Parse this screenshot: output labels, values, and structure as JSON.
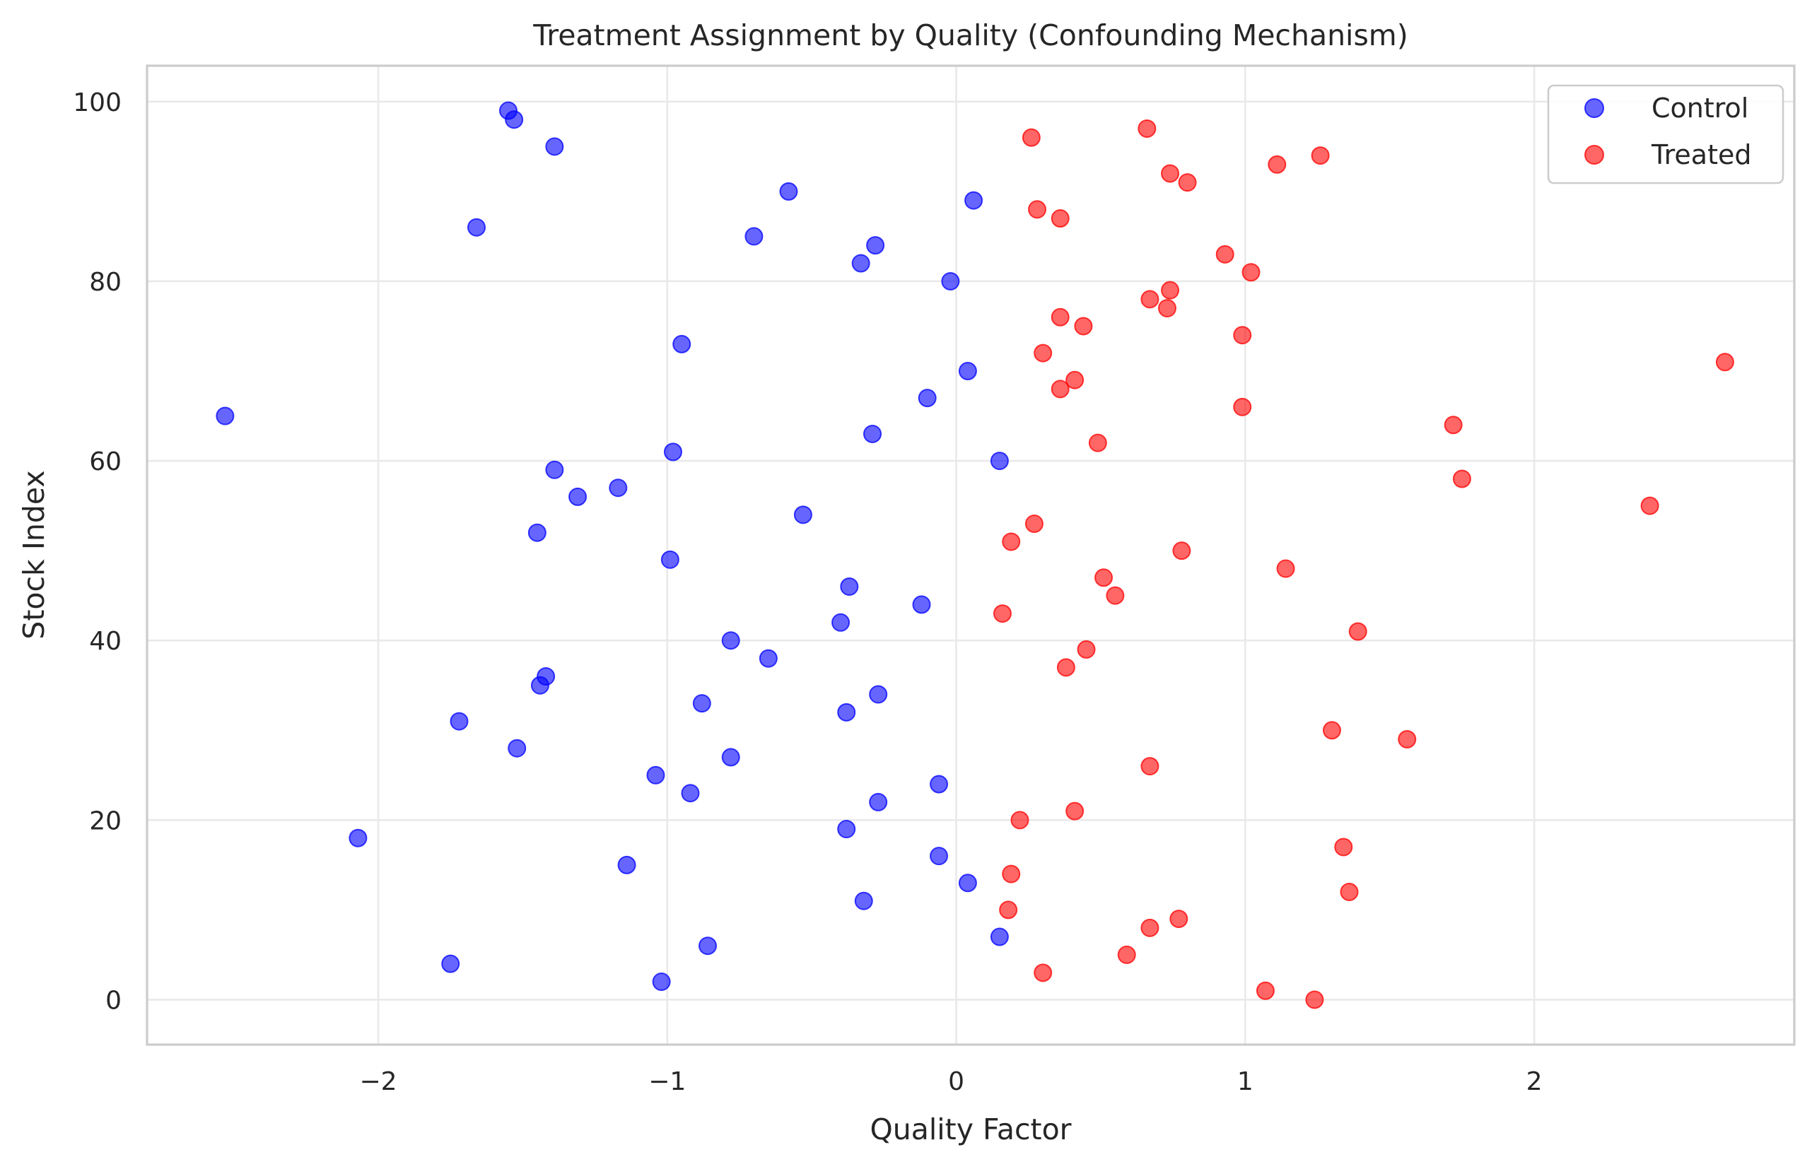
{
  "chart_data": {
    "type": "scatter",
    "title": "Treatment Assignment by Quality (Confounding Mechanism)",
    "xlabel": "Quality Factor",
    "ylabel": "Stock Index",
    "xlim": [
      -2.8,
      2.9
    ],
    "ylim": [
      -5,
      104
    ],
    "xticks": [
      -2,
      -1,
      0,
      1,
      2
    ],
    "xtick_labels": [
      "−2",
      "−1",
      "0",
      "1",
      "2"
    ],
    "yticks": [
      0,
      20,
      40,
      60,
      80,
      100
    ],
    "ytick_labels": [
      "0",
      "20",
      "40",
      "60",
      "80",
      "100"
    ],
    "grid": true,
    "legend_position": "top-right",
    "series": [
      {
        "name": "Control",
        "color": "#0000ff",
        "points": [
          [
            -1.55,
            99
          ],
          [
            -1.53,
            98
          ],
          [
            -1.39,
            95
          ],
          [
            -1.66,
            86
          ],
          [
            -0.58,
            90
          ],
          [
            -0.7,
            85
          ],
          [
            -0.28,
            84
          ],
          [
            -0.33,
            82
          ],
          [
            0.06,
            89
          ],
          [
            -0.02,
            80
          ],
          [
            -0.95,
            73
          ],
          [
            0.04,
            70
          ],
          [
            -0.1,
            67
          ],
          [
            -2.53,
            65
          ],
          [
            -0.98,
            61
          ],
          [
            -0.29,
            63
          ],
          [
            0.15,
            60
          ],
          [
            -1.39,
            59
          ],
          [
            -1.17,
            57
          ],
          [
            -1.31,
            56
          ],
          [
            -0.53,
            54
          ],
          [
            -1.45,
            52
          ],
          [
            -0.99,
            49
          ],
          [
            -0.37,
            46
          ],
          [
            -0.12,
            44
          ],
          [
            -0.4,
            42
          ],
          [
            -0.78,
            40
          ],
          [
            -0.65,
            38
          ],
          [
            -1.42,
            36
          ],
          [
            -1.44,
            35
          ],
          [
            -0.27,
            34
          ],
          [
            -0.88,
            33
          ],
          [
            -0.38,
            32
          ],
          [
            -1.72,
            31
          ],
          [
            -1.52,
            28
          ],
          [
            -0.78,
            27
          ],
          [
            -1.04,
            25
          ],
          [
            -0.06,
            24
          ],
          [
            -0.92,
            23
          ],
          [
            -0.27,
            22
          ],
          [
            -0.38,
            19
          ],
          [
            -2.07,
            18
          ],
          [
            -0.06,
            16
          ],
          [
            -1.14,
            15
          ],
          [
            0.04,
            13
          ],
          [
            -0.32,
            11
          ],
          [
            0.15,
            7
          ],
          [
            -0.86,
            6
          ],
          [
            -1.75,
            4
          ],
          [
            -1.02,
            2
          ]
        ]
      },
      {
        "name": "Treated",
        "color": "#ff0000",
        "points": [
          [
            0.66,
            97
          ],
          [
            0.26,
            96
          ],
          [
            1.26,
            94
          ],
          [
            0.74,
            92
          ],
          [
            1.11,
            93
          ],
          [
            0.8,
            91
          ],
          [
            0.28,
            88
          ],
          [
            0.36,
            87
          ],
          [
            0.93,
            83
          ],
          [
            1.02,
            81
          ],
          [
            0.74,
            79
          ],
          [
            0.67,
            78
          ],
          [
            0.73,
            77
          ],
          [
            0.36,
            76
          ],
          [
            0.44,
            75
          ],
          [
            0.99,
            74
          ],
          [
            0.3,
            72
          ],
          [
            2.66,
            71
          ],
          [
            0.41,
            69
          ],
          [
            0.36,
            68
          ],
          [
            0.99,
            66
          ],
          [
            1.72,
            64
          ],
          [
            0.49,
            62
          ],
          [
            1.75,
            58
          ],
          [
            2.4,
            55
          ],
          [
            0.27,
            53
          ],
          [
            0.19,
            51
          ],
          [
            0.78,
            50
          ],
          [
            1.14,
            48
          ],
          [
            0.51,
            47
          ],
          [
            0.55,
            45
          ],
          [
            0.16,
            43
          ],
          [
            1.39,
            41
          ],
          [
            0.45,
            39
          ],
          [
            0.38,
            37
          ],
          [
            1.3,
            30
          ],
          [
            1.56,
            29
          ],
          [
            0.67,
            26
          ],
          [
            0.41,
            21
          ],
          [
            0.22,
            20
          ],
          [
            1.34,
            17
          ],
          [
            0.19,
            14
          ],
          [
            1.36,
            12
          ],
          [
            0.18,
            10
          ],
          [
            0.77,
            9
          ],
          [
            0.67,
            8
          ],
          [
            0.59,
            5
          ],
          [
            0.3,
            3
          ],
          [
            1.07,
            1
          ],
          [
            1.24,
            0
          ]
        ]
      }
    ]
  }
}
